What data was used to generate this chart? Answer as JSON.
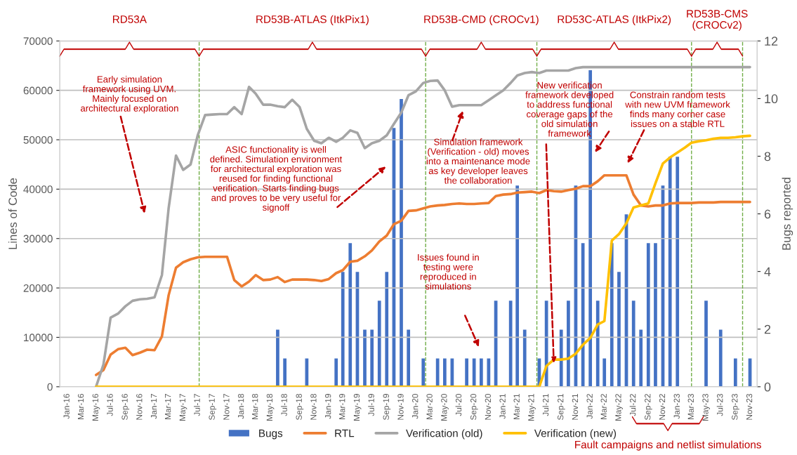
{
  "chart_data": {
    "type": "line",
    "x": [
      "2016-05",
      "2016-06",
      "2016-07",
      "2016-08",
      "2016-09",
      "2016-10",
      "2016-11",
      "2016-12",
      "2017-01",
      "2017-02",
      "2017-03",
      "2017-04",
      "2017-05",
      "2017-06",
      "2017-07",
      "2017-08",
      "2017-09",
      "2017-10",
      "2017-11",
      "2017-12",
      "2018-01",
      "2018-02",
      "2018-03",
      "2018-04",
      "2018-05",
      "2018-06",
      "2018-07",
      "2018-08",
      "2018-09",
      "2018-10",
      "2018-11",
      "2018-12",
      "2019-01",
      "2019-02",
      "2019-03",
      "2019-04",
      "2019-05",
      "2019-06",
      "2019-07",
      "2019-08",
      "2019-09",
      "2019-10",
      "2019-11",
      "2019-12",
      "2020-01",
      "2020-02",
      "2020-03",
      "2020-04",
      "2020-05",
      "2020-06",
      "2020-07",
      "2020-08",
      "2020-09",
      "2020-10",
      "2020-11",
      "2020-12",
      "2021-01",
      "2021-02",
      "2021-03",
      "2021-04",
      "2021-05",
      "2021-06",
      "2021-07",
      "2021-08",
      "2021-09",
      "2021-10",
      "2021-11",
      "2021-12",
      "2022-01",
      "2022-02",
      "2022-03",
      "2022-04",
      "2022-05",
      "2022-06",
      "2022-07",
      "2022-08",
      "2022-09",
      "2022-10",
      "2022-11",
      "2022-12",
      "2023-01",
      "2023-02",
      "2023-03",
      "2023-04",
      "2023-05",
      "2023-06",
      "2023-07",
      "2023-08",
      "2023-09",
      "2023-10",
      "2023-11"
    ],
    "series": [
      {
        "name": "Bugs",
        "type": "bar",
        "axis": "y2",
        "color": "#4472c4",
        "values": [
          null,
          null,
          null,
          null,
          null,
          null,
          null,
          null,
          null,
          null,
          null,
          null,
          null,
          null,
          null,
          null,
          null,
          null,
          null,
          null,
          null,
          null,
          null,
          null,
          null,
          2,
          1,
          null,
          null,
          1,
          null,
          null,
          null,
          1,
          4,
          5,
          4,
          2,
          2,
          3,
          4,
          9,
          10,
          2,
          null,
          1,
          null,
          1,
          1,
          1,
          null,
          1,
          1,
          1,
          1,
          3,
          null,
          3,
          7,
          2,
          null,
          1,
          3,
          null,
          2,
          3,
          7,
          5,
          11,
          3,
          1,
          5,
          4,
          6,
          3,
          2,
          5,
          5,
          7,
          8,
          8,
          null,
          null,
          null,
          3,
          null,
          2,
          null,
          1,
          null,
          1
        ]
      },
      {
        "name": "RTL",
        "color": "#ed7d31",
        "values": [
          2400,
          3400,
          6500,
          7600,
          7900,
          6400,
          6900,
          7500,
          7400,
          10200,
          18500,
          24100,
          25200,
          25800,
          26200,
          26300,
          26300,
          26300,
          26300,
          21600,
          20300,
          21300,
          22600,
          21600,
          21700,
          22200,
          21200,
          21700,
          21700,
          21700,
          21600,
          21400,
          21800,
          23000,
          23600,
          25300,
          25500,
          26400,
          27600,
          29400,
          30600,
          32900,
          33600,
          35600,
          35700,
          36100,
          36500,
          36700,
          36800,
          37000,
          37100,
          37000,
          37000,
          37100,
          37200,
          38600,
          38900,
          39000,
          39300,
          39400,
          39500,
          39200,
          39800,
          39600,
          39500,
          39800,
          40100,
          40600,
          40600,
          41600,
          42800,
          42800,
          42800,
          42800,
          38900,
          36700,
          36500,
          36700,
          36700,
          37100,
          37200,
          37200,
          37200,
          37300,
          37300,
          37300,
          37400,
          37400,
          37400,
          37400,
          37400
        ]
      },
      {
        "name": "Verification (old)",
        "color": "#a5a5a5",
        "values": [
          0,
          4500,
          14000,
          14800,
          16300,
          17400,
          17700,
          17800,
          18100,
          22600,
          36100,
          46800,
          43900,
          45000,
          50900,
          55000,
          55100,
          55200,
          55200,
          56600,
          55200,
          60700,
          59300,
          57100,
          57100,
          56800,
          56600,
          58100,
          56600,
          52200,
          49800,
          49300,
          50400,
          49600,
          50400,
          51900,
          51400,
          48300,
          49300,
          49800,
          50900,
          53200,
          55500,
          59000,
          59800,
          61500,
          61900,
          62000,
          60000,
          56700,
          57000,
          57000,
          57000,
          57000,
          58000,
          59000,
          60000,
          61500,
          63000,
          63500,
          63700,
          63500,
          64000,
          64000,
          64000,
          64000,
          64500,
          64700,
          64700,
          64700,
          64700,
          64700,
          64700,
          64700,
          64700,
          64700,
          64700,
          64700,
          64700,
          64700,
          64700,
          64700,
          64700,
          64700,
          64700,
          64700,
          64700,
          64700,
          64700,
          64700,
          64700
        ]
      },
      {
        "name": "Verification (new)",
        "color": "#ffc000",
        "values": [
          0,
          0,
          0,
          0,
          0,
          0,
          0,
          0,
          0,
          0,
          0,
          0,
          0,
          0,
          0,
          0,
          0,
          0,
          0,
          0,
          0,
          0,
          0,
          0,
          0,
          0,
          0,
          0,
          0,
          0,
          0,
          0,
          0,
          0,
          0,
          0,
          0,
          0,
          0,
          0,
          0,
          0,
          0,
          0,
          0,
          0,
          0,
          0,
          0,
          0,
          0,
          0,
          0,
          0,
          0,
          0,
          0,
          0,
          0,
          0,
          0,
          0,
          4200,
          5500,
          5500,
          5700,
          6700,
          8500,
          9900,
          12600,
          13300,
          29600,
          30900,
          33100,
          36300,
          36700,
          37100,
          41200,
          45200,
          46400,
          47400,
          48400,
          49400,
          49700,
          49900,
          50200,
          50400,
          50400,
          50500,
          50700,
          50800
        ]
      }
    ],
    "ylabel": "Lines of Code",
    "y2label": "Bugs reported",
    "xlim": [
      "2015-12",
      "2023-12"
    ],
    "xticks": [
      {
        "value": "2016-01",
        "label": "Jan-16"
      },
      {
        "value": "2016-03",
        "label": "Mar-16"
      },
      {
        "value": "2016-05",
        "label": "May-16"
      },
      {
        "value": "2016-07",
        "label": "Jul-16"
      },
      {
        "value": "2016-09",
        "label": "Sep-16"
      },
      {
        "value": "2016-11",
        "label": "Nov-16"
      },
      {
        "value": "2017-01",
        "label": "Jan-17"
      },
      {
        "value": "2017-03",
        "label": "Mar-17"
      },
      {
        "value": "2017-05",
        "label": "May-17"
      },
      {
        "value": "2017-07",
        "label": "Jul-17"
      },
      {
        "value": "2017-09",
        "label": "Sep-17"
      },
      {
        "value": "2017-11",
        "label": "Nov-17"
      },
      {
        "value": "2018-01",
        "label": "Jan-18"
      },
      {
        "value": "2018-03",
        "label": "Mar-18"
      },
      {
        "value": "2018-05",
        "label": "May-18"
      },
      {
        "value": "2018-07",
        "label": "Jul-18"
      },
      {
        "value": "2018-09",
        "label": "Sep-18"
      },
      {
        "value": "2018-11",
        "label": "Nov-18"
      },
      {
        "value": "2019-01",
        "label": "Jan-19"
      },
      {
        "value": "2019-03",
        "label": "Mar-19"
      },
      {
        "value": "2019-05",
        "label": "May-19"
      },
      {
        "value": "2019-07",
        "label": "Jul-19"
      },
      {
        "value": "2019-09",
        "label": "Sep-19"
      },
      {
        "value": "2019-11",
        "label": "Nov-19"
      },
      {
        "value": "2020-01",
        "label": "Jan-20"
      },
      {
        "value": "2020-03",
        "label": "Mar-20"
      },
      {
        "value": "2020-05",
        "label": "May-20"
      },
      {
        "value": "2020-07",
        "label": "Jul-20"
      },
      {
        "value": "2020-09",
        "label": "Sep-20"
      },
      {
        "value": "2020-11",
        "label": "Nov-20"
      },
      {
        "value": "2021-01",
        "label": "Jan-21"
      },
      {
        "value": "2021-03",
        "label": "Mar-21"
      },
      {
        "value": "2021-05",
        "label": "May-21"
      },
      {
        "value": "2021-07",
        "label": "Jul-21"
      },
      {
        "value": "2021-09",
        "label": "Sep-21"
      },
      {
        "value": "2021-11",
        "label": "Nov-21"
      },
      {
        "value": "2022-01",
        "label": "Jan-22"
      },
      {
        "value": "2022-03",
        "label": "Mar-22"
      },
      {
        "value": "2022-05",
        "label": "May-22"
      },
      {
        "value": "2022-07",
        "label": "Jul-22"
      },
      {
        "value": "2022-09",
        "label": "Sep-22"
      },
      {
        "value": "2022-11",
        "label": "Nov-22"
      },
      {
        "value": "2023-01",
        "label": "Jan-23"
      },
      {
        "value": "2023-03",
        "label": "Mar-23"
      },
      {
        "value": "2023-05",
        "label": "May-23"
      },
      {
        "value": "2023-07",
        "label": "Jul-23"
      },
      {
        "value": "2023-09",
        "label": "Sep-23"
      },
      {
        "value": "2023-11",
        "label": "Nov-23"
      }
    ],
    "ylim": [
      0,
      70000
    ],
    "yticks": [
      0,
      10000,
      20000,
      30000,
      40000,
      50000,
      60000,
      70000
    ],
    "y2lim": [
      0,
      12
    ],
    "y2ticks": [
      0,
      2,
      4,
      6,
      8,
      10,
      12
    ],
    "grid": "y",
    "legend": "bottom",
    "ref_lines": [
      {
        "axis": "x",
        "value": "2017-07-07",
        "color": "#70ad47",
        "line_style": "dashed"
      },
      {
        "axis": "x",
        "value": "2020-02-11",
        "color": "#70ad47",
        "line_style": "dashed"
      },
      {
        "axis": "x",
        "value": "2021-05-22",
        "color": "#70ad47",
        "line_style": "dashed"
      },
      {
        "axis": "x",
        "value": "2023-03-01",
        "color": "#70ad47",
        "line_style": "dashed"
      },
      {
        "axis": "x",
        "value": "2023-10-01",
        "color": "#70ad47",
        "line_style": "dashed"
      }
    ],
    "annotations": [
      "Early simulation\nframework using UVM.\nMainly focused on\narchitectural exploration",
      "ASIC functionality is well\ndefined. Simulation environment\nfor architectural exploration was\nreused for finding functional\nverification. Starts finding bugs\nand proves to be very useful for\nsignoff",
      "Simulation framework\n(Verification - old) moves\ninto a maintenance mode\nas key developer leaves\nthe collaboration",
      "Issues found in\ntesting were\nreproduced in\nsimulations",
      {
        "text": "New verification\nframework developed\nto address functional\ncoverage gaps of the\nold simulation\nframework",
        "x": "2021-08",
        "y": 4800
      },
      "Constrain random tests\nwith new UVM framework\nfinds many corner case\nissues on a stable RTL",
      "RD53A",
      "RD53B-ATLAS (ItkPix1)",
      "RD53B-CMD (CROCv1)",
      "RD53C-ATLAS (ItkPix2)",
      "RD53B-CMS\n(CROCv2)",
      "Fault campaigns and netlist simulations"
    ]
  }
}
